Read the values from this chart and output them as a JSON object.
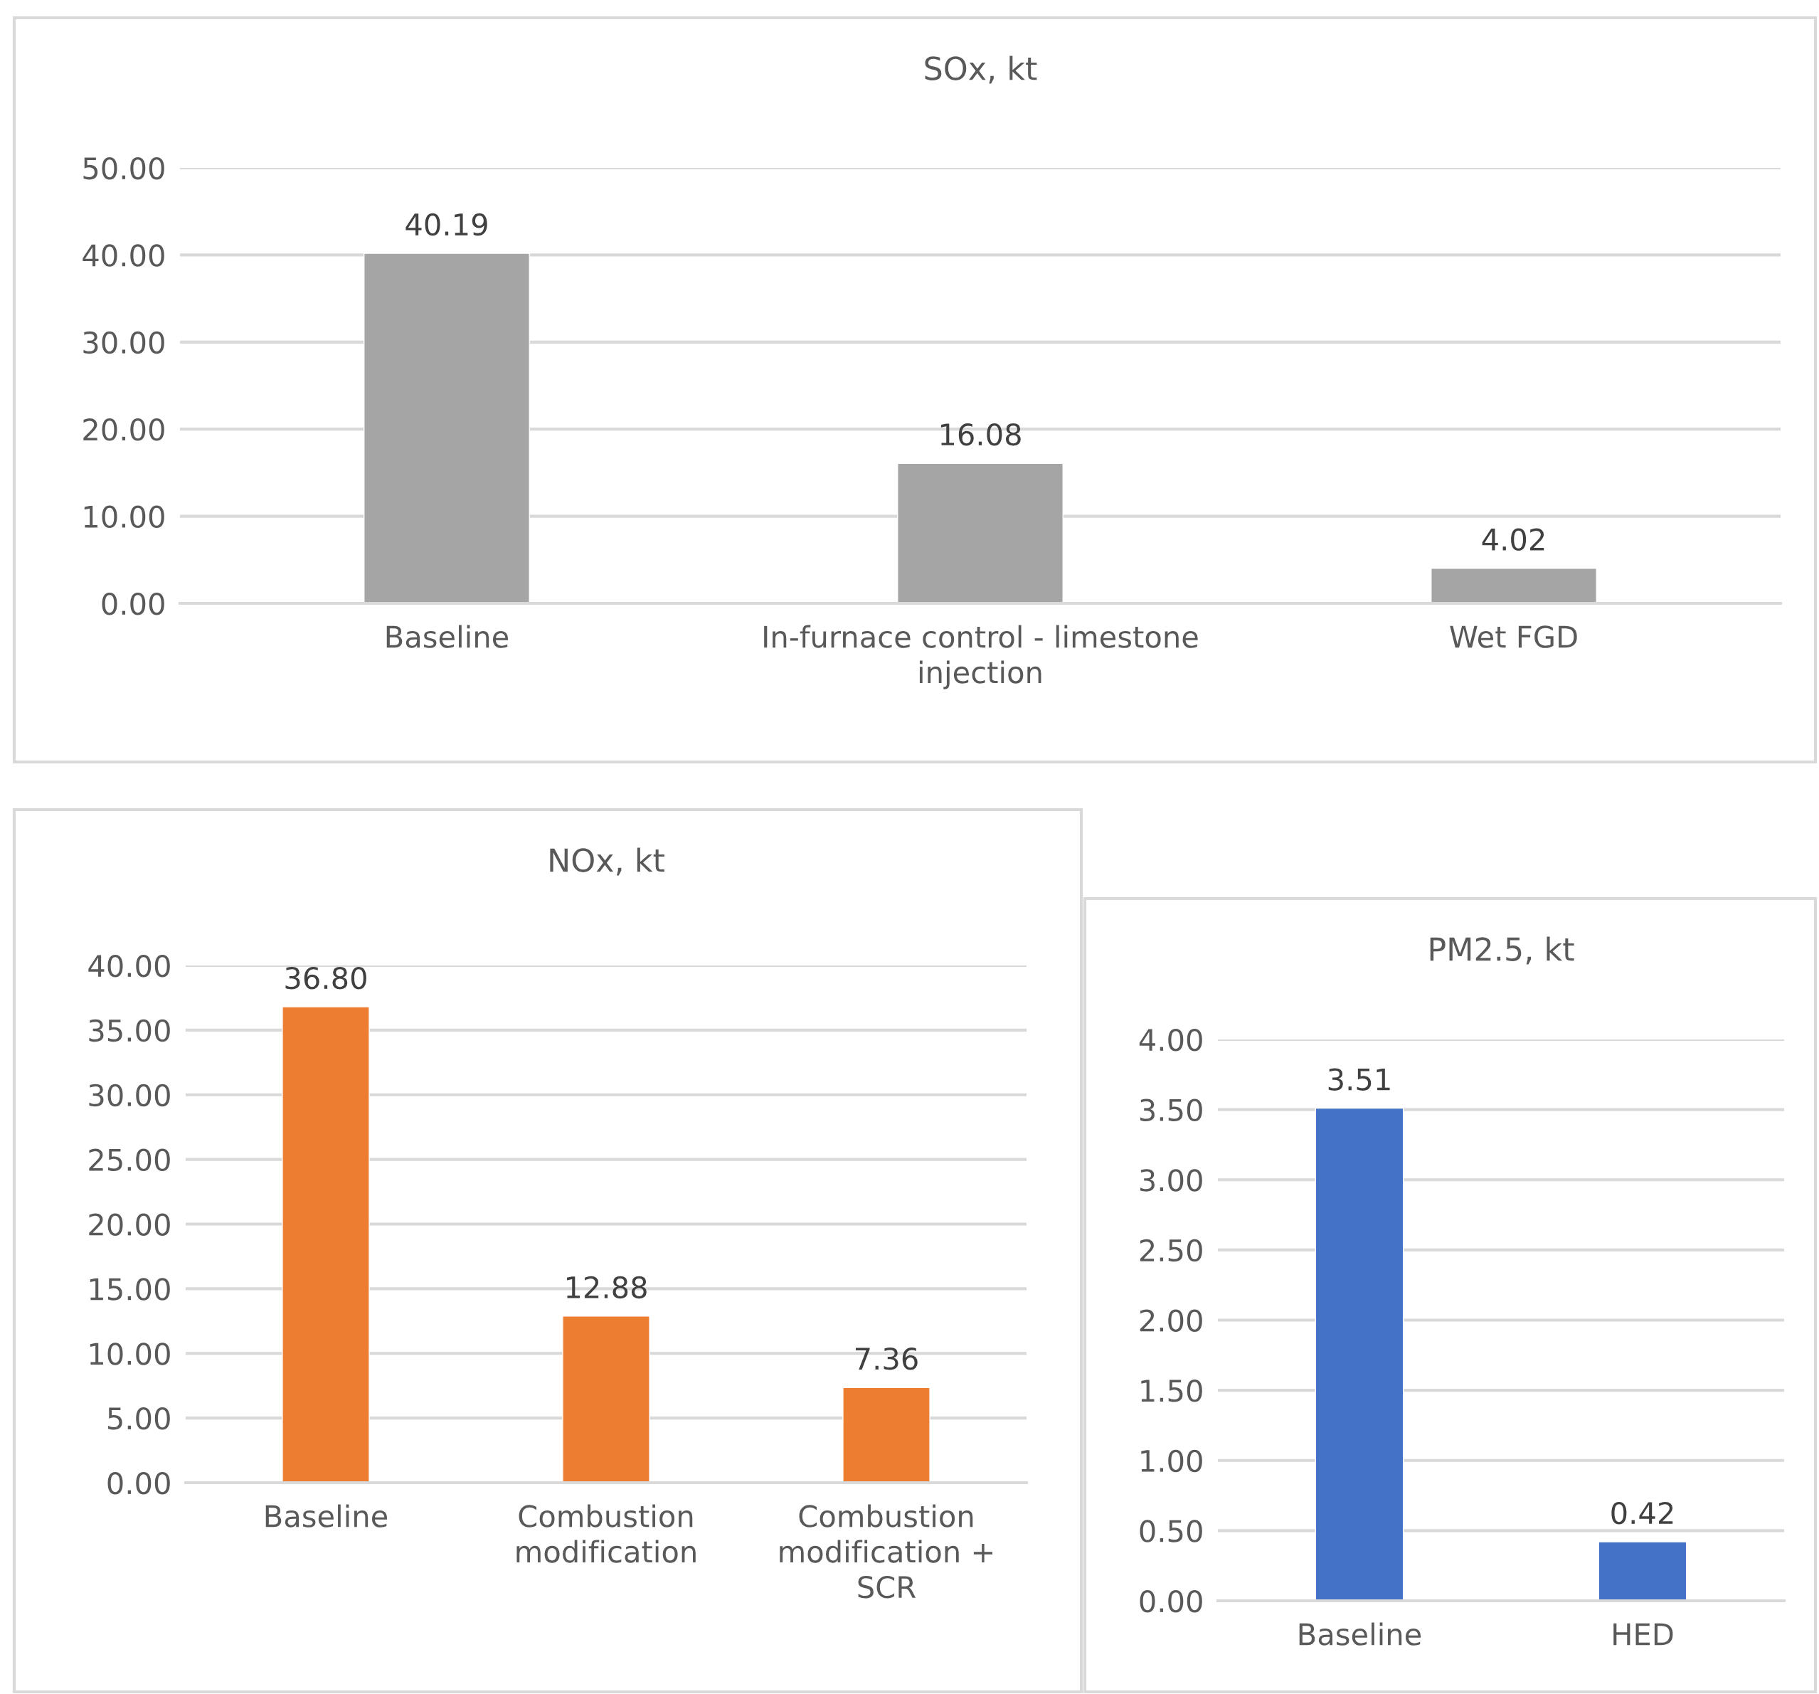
{
  "chart_data": [
    {
      "type": "bar",
      "title": "SOx, kt",
      "categories": [
        "Baseline",
        "In-furnace control - limestone injection",
        "Wet FGD"
      ],
      "values": [
        40.19,
        16.08,
        4.02
      ],
      "value_labels": [
        "40.19",
        "16.08",
        "4.02"
      ],
      "color": "#a5a5a5",
      "ylim": [
        0,
        50
      ],
      "yticks": [
        {
          "value": 0,
          "label": "0.00"
        },
        {
          "value": 10,
          "label": "10.00"
        },
        {
          "value": 20,
          "label": "20.00"
        },
        {
          "value": 30,
          "label": "30.00"
        },
        {
          "value": 40,
          "label": "40.00"
        },
        {
          "value": 50,
          "label": "50.00"
        }
      ],
      "grid": "y"
    },
    {
      "type": "bar",
      "title": "NOx, kt",
      "categories": [
        "Baseline",
        "Combustion modification",
        "Combustion modification + SCR"
      ],
      "values": [
        36.8,
        12.88,
        7.36
      ],
      "value_labels": [
        "36.80",
        "12.88",
        "7.36"
      ],
      "color": "#ed7d31",
      "ylim": [
        0,
        40
      ],
      "yticks": [
        {
          "value": 0,
          "label": "0.00"
        },
        {
          "value": 5,
          "label": "5.00"
        },
        {
          "value": 10,
          "label": "10.00"
        },
        {
          "value": 15,
          "label": "15.00"
        },
        {
          "value": 20,
          "label": "20.00"
        },
        {
          "value": 25,
          "label": "25.00"
        },
        {
          "value": 30,
          "label": "30.00"
        },
        {
          "value": 35,
          "label": "35.00"
        },
        {
          "value": 40,
          "label": "40.00"
        }
      ],
      "grid": "y"
    },
    {
      "type": "bar",
      "title": "PM2.5, kt",
      "categories": [
        "Baseline",
        "HED"
      ],
      "values": [
        3.51,
        0.42
      ],
      "value_labels": [
        "3.51",
        "0.42"
      ],
      "color": "#4472c4",
      "ylim": [
        0,
        4
      ],
      "yticks": [
        {
          "value": 0,
          "label": "0.00"
        },
        {
          "value": 0.5,
          "label": "0.50"
        },
        {
          "value": 1,
          "label": "1.00"
        },
        {
          "value": 1.5,
          "label": "1.50"
        },
        {
          "value": 2,
          "label": "2.00"
        },
        {
          "value": 2.5,
          "label": "2.50"
        },
        {
          "value": 3,
          "label": "3.00"
        },
        {
          "value": 3.5,
          "label": "3.50"
        },
        {
          "value": 4,
          "label": "4.00"
        }
      ],
      "grid": "y"
    }
  ]
}
